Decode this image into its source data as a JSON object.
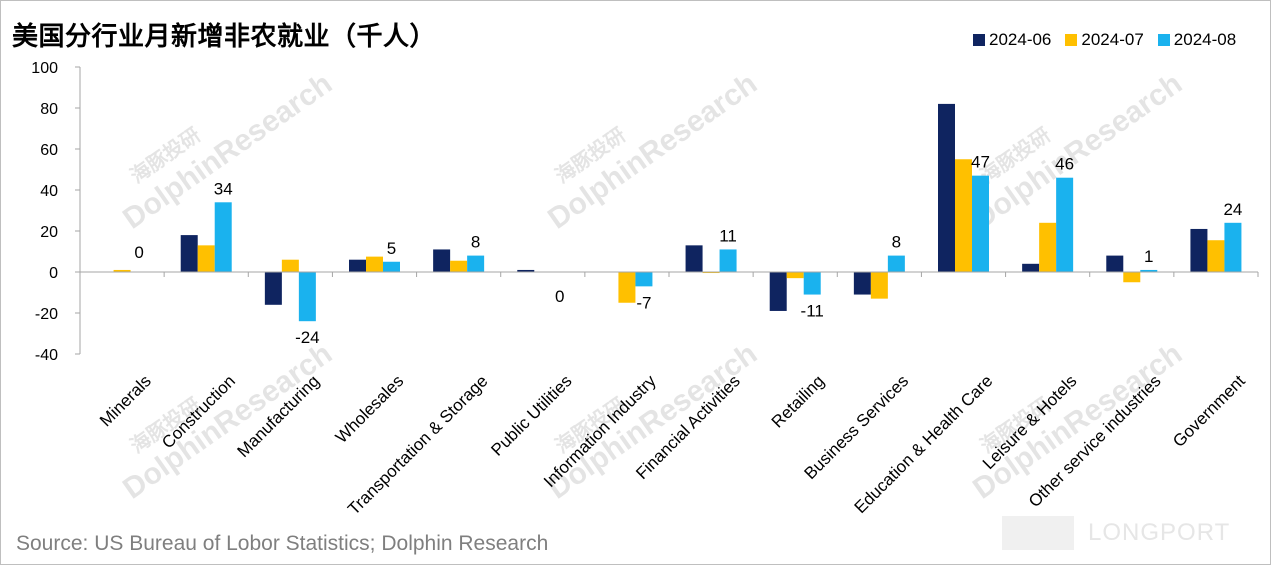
{
  "title": "美国分行业月新增非农就业（千人）",
  "source": "Source: US Bureau of Lobor Statistics; Dolphin Research",
  "watermark": {
    "text": "DolphinResearch",
    "cn": "海豚投研",
    "brand": "LONGPORT"
  },
  "colors": {
    "s1": "#0f2460",
    "s2": "#ffc000",
    "s3": "#1ab2ee",
    "axis": "#a6a6a6"
  },
  "chart_data": {
    "type": "bar",
    "title": "美国分行业月新增非农就业（千人）",
    "categories": [
      "Minerals",
      "Construction",
      "Manufacturing",
      "Wholesales",
      "Transportation & Storage",
      "Public Utilities",
      "Information Industry",
      "Financial Activities",
      "Retailing",
      "Business Services",
      "Education & Health Care",
      "Leisure & Hotels",
      "Other service industries",
      "Government"
    ],
    "series": [
      {
        "name": "2024-06",
        "values": [
          0,
          18,
          -16,
          6,
          11,
          1,
          0,
          13,
          -19,
          -11,
          82,
          4,
          8,
          21
        ]
      },
      {
        "name": "2024-07",
        "values": [
          1,
          13,
          6,
          7.5,
          5.5,
          0,
          -15,
          -0.5,
          -3,
          -13,
          55,
          24,
          -5,
          15.5
        ]
      },
      {
        "name": "2024-08",
        "values": [
          0,
          34,
          -24,
          5,
          8,
          0,
          -7,
          11,
          -11,
          8,
          47,
          46,
          1,
          24
        ]
      }
    ],
    "data_labels": [
      "0",
      "34",
      "-24",
      "5",
      "8",
      "0",
      "-7",
      "11",
      "-11",
      "8",
      "47",
      "46",
      "1",
      "24"
    ],
    "yticks": [
      "100",
      "80",
      "60",
      "40",
      "20",
      "0",
      "-20",
      "-40"
    ],
    "ylim": [
      -40,
      100
    ],
    "legend": "top-right",
    "grid": false
  }
}
